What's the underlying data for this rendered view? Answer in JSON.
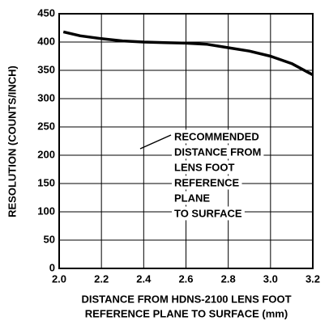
{
  "chart_data": {
    "type": "line",
    "ylabel": "RESOLUTION (COUNTS/INCH)",
    "xlabel": [
      "DISTANCE FROM HDNS-2100 LENS FOOT",
      "REFERENCE PLANE TO SURFACE (mm)"
    ],
    "annotation": [
      "RECOMMENDED",
      "DISTANCE FROM",
      "LENS FOOT",
      "REFERENCE",
      "PLANE",
      "TO SURFACE"
    ],
    "x": [
      2.02,
      2.1,
      2.2,
      2.3,
      2.4,
      2.5,
      2.6,
      2.7,
      2.8,
      2.9,
      3.0,
      3.1,
      3.2
    ],
    "series": [
      {
        "color": "#000000",
        "values": [
          418,
          411,
          406,
          402,
          400,
          399,
          398,
          396,
          390,
          384,
          375,
          362,
          342
        ]
      }
    ],
    "xlim": [
      2.0,
      3.2
    ],
    "ylim": [
      0,
      450
    ],
    "xticks": [
      {
        "value": 2,
        "label": "2.0"
      },
      2.2,
      2.4,
      2.6,
      2.8,
      {
        "value": 3,
        "label": "3.0"
      },
      3.2
    ],
    "yticks": [
      0,
      50,
      100,
      150,
      200,
      250,
      300,
      350,
      400,
      450
    ],
    "grid": true
  }
}
